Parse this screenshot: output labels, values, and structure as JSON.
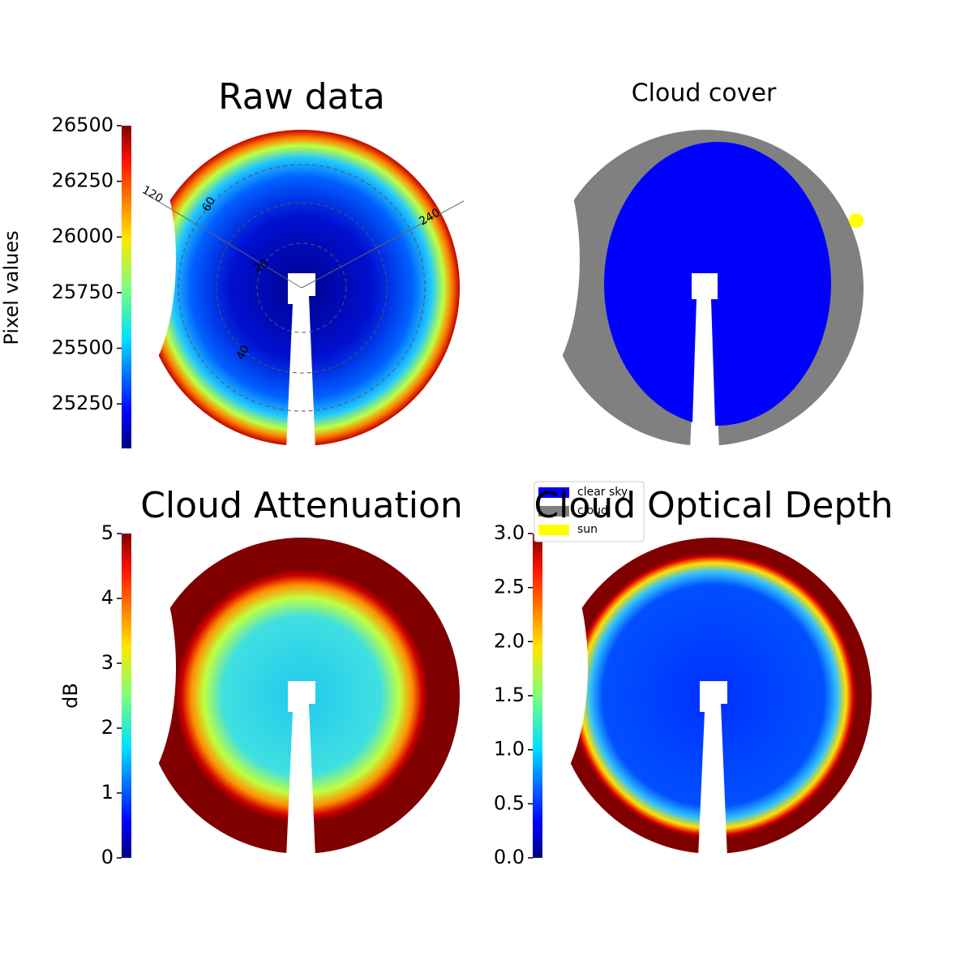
{
  "panels": [
    {
      "title": "Raw data",
      "colorbar": {
        "label": "Pixel values",
        "lim": [
          25050,
          26500
        ],
        "ticks": [
          25250,
          25500,
          25750,
          26000,
          26250,
          26500
        ]
      },
      "grid_labels": [
        120,
        60,
        240,
        20,
        40
      ]
    },
    {
      "title": "Cloud cover",
      "legend": [
        {
          "label": "clear sky",
          "color": "#0000ff"
        },
        {
          "label": "cloud",
          "color": "#808080"
        },
        {
          "label": "sun",
          "color": "#ffff00"
        }
      ]
    },
    {
      "title": "Cloud Attenuation",
      "colorbar": {
        "label": "dB",
        "lim": [
          0,
          5
        ],
        "ticks": [
          0,
          1,
          2,
          3,
          4,
          5
        ]
      }
    },
    {
      "title": "Cloud Optical Depth",
      "colorbar": {
        "lim": [
          0,
          3
        ],
        "ticks": [
          {
            "value": 0,
            "label": "0.0"
          },
          0.5,
          {
            "value": 1,
            "label": "1.0"
          },
          1.5,
          {
            "value": 2,
            "label": "2.0"
          },
          2.5,
          {
            "value": 3,
            "label": "3.0"
          }
        ]
      }
    }
  ]
}
